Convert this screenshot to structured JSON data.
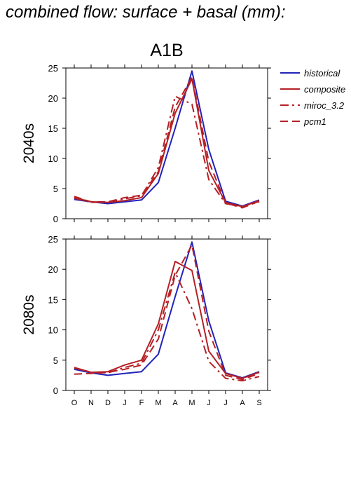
{
  "title": "combined flow: surface + basal (mm):",
  "scenario": "A1B",
  "colors": {
    "historical": "#2222bb",
    "future": "#b52025"
  },
  "chart_data": [
    {
      "type": "line",
      "panel_label": "2040s",
      "categories": [
        "O",
        "N",
        "D",
        "J",
        "F",
        "M",
        "A",
        "M",
        "J",
        "J",
        "A",
        "S"
      ],
      "ylim": [
        0,
        25
      ],
      "yticks": [
        0,
        5,
        10,
        15,
        20,
        25
      ],
      "legend_position": "right",
      "series": [
        {
          "name": "historical",
          "style": "solid",
          "color": "#2222bb",
          "values": [
            3.2,
            2.8,
            2.5,
            2.8,
            3.1,
            6.0,
            15.0,
            24.5,
            11.5,
            2.9,
            2.1,
            3.1
          ]
        },
        {
          "name": "composite",
          "style": "solid",
          "color": "#b52025",
          "values": [
            3.5,
            2.8,
            2.7,
            3.0,
            3.5,
            7.5,
            17.5,
            23.2,
            8.0,
            2.7,
            2.0,
            3.0
          ]
        },
        {
          "name": "miroc_3.2",
          "style": "dashdot",
          "color": "#b52025",
          "values": [
            3.4,
            2.7,
            2.8,
            3.3,
            3.8,
            8.5,
            20.3,
            19.0,
            6.5,
            2.5,
            2.0,
            2.8
          ]
        },
        {
          "name": "pcm1",
          "style": "dashed",
          "color": "#b52025",
          "values": [
            3.7,
            2.8,
            2.8,
            3.5,
            3.9,
            7.8,
            18.5,
            23.5,
            9.5,
            2.6,
            1.8,
            2.9
          ]
        }
      ]
    },
    {
      "type": "line",
      "panel_label": "2080s",
      "categories": [
        "O",
        "N",
        "D",
        "J",
        "F",
        "M",
        "A",
        "M",
        "J",
        "J",
        "A",
        "S"
      ],
      "ylim": [
        0,
        25
      ],
      "yticks": [
        0,
        5,
        10,
        15,
        20,
        25
      ],
      "series": [
        {
          "name": "historical",
          "style": "solid",
          "color": "#2222bb",
          "values": [
            3.5,
            2.9,
            2.5,
            2.8,
            3.1,
            6.0,
            15.5,
            24.5,
            11.5,
            2.9,
            2.1,
            3.1
          ]
        },
        {
          "name": "composite",
          "style": "solid",
          "color": "#b52025",
          "values": [
            3.8,
            3.0,
            3.1,
            4.2,
            5.0,
            11.0,
            21.3,
            19.8,
            6.5,
            2.8,
            2.0,
            3.0
          ]
        },
        {
          "name": "miroc_3.2",
          "style": "dashdot",
          "color": "#b52025",
          "values": [
            3.7,
            3.0,
            2.9,
            3.8,
            4.5,
            10.0,
            19.5,
            13.5,
            4.8,
            2.0,
            1.6,
            2.3
          ]
        },
        {
          "name": "pcm1",
          "style": "dashed",
          "color": "#b52025",
          "values": [
            2.7,
            2.8,
            3.0,
            3.5,
            4.2,
            8.5,
            19.0,
            24.0,
            9.8,
            2.5,
            1.8,
            2.8
          ]
        }
      ]
    }
  ]
}
